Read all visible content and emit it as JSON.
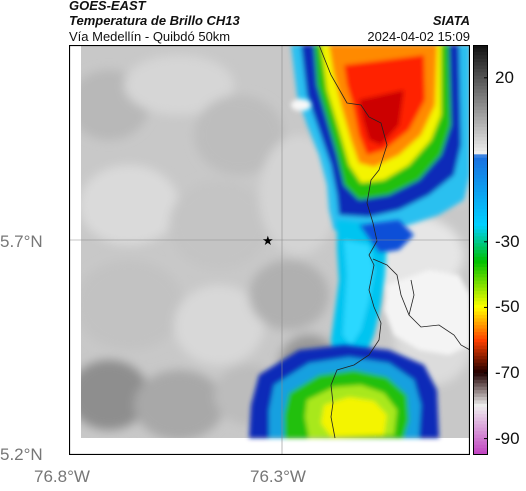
{
  "header": {
    "satellite": "GOES-EAST",
    "product": "Temperatura de Brillo CH13",
    "region": "Vía Medellín - Quibdó 50km",
    "org": "SIATA",
    "datetime": "2024-04-02 15:09"
  },
  "axes": {
    "y_ticks": [
      "5.7°N",
      "5.2°N"
    ],
    "x_ticks": [
      "76.8°W",
      "76.3°W"
    ]
  },
  "marker": {
    "icon": "star-icon"
  },
  "colorbar": {
    "tick_labels": [
      "20",
      "-30",
      "-50",
      "-70",
      "-90"
    ],
    "tick_values": [
      20,
      -30,
      -50,
      -70,
      -90
    ],
    "range": [
      30,
      -95
    ],
    "stops": [
      {
        "v": 30,
        "c": "#111111"
      },
      {
        "v": -3,
        "c": "#eeeeee"
      },
      {
        "v": -4,
        "c": "#1a6fe0"
      },
      {
        "v": -25,
        "c": "#00d0ff"
      },
      {
        "v": -36,
        "c": "#00c000"
      },
      {
        "v": -50,
        "c": "#ffff00"
      },
      {
        "v": -60,
        "c": "#ff4000"
      },
      {
        "v": -70,
        "c": "#200000"
      },
      {
        "v": -80,
        "c": "#eeeeee"
      },
      {
        "v": -95,
        "c": "#c040c0"
      }
    ]
  },
  "colors": {
    "cloud_gray_light": "#d8d8d8",
    "cloud_gray_dark": "#888888",
    "deep_blue": "#0b1ea8",
    "cyan": "#00b8f0",
    "green": "#22c010",
    "yellow": "#f4f400",
    "orange": "#ff8000",
    "red": "#ff1800"
  }
}
